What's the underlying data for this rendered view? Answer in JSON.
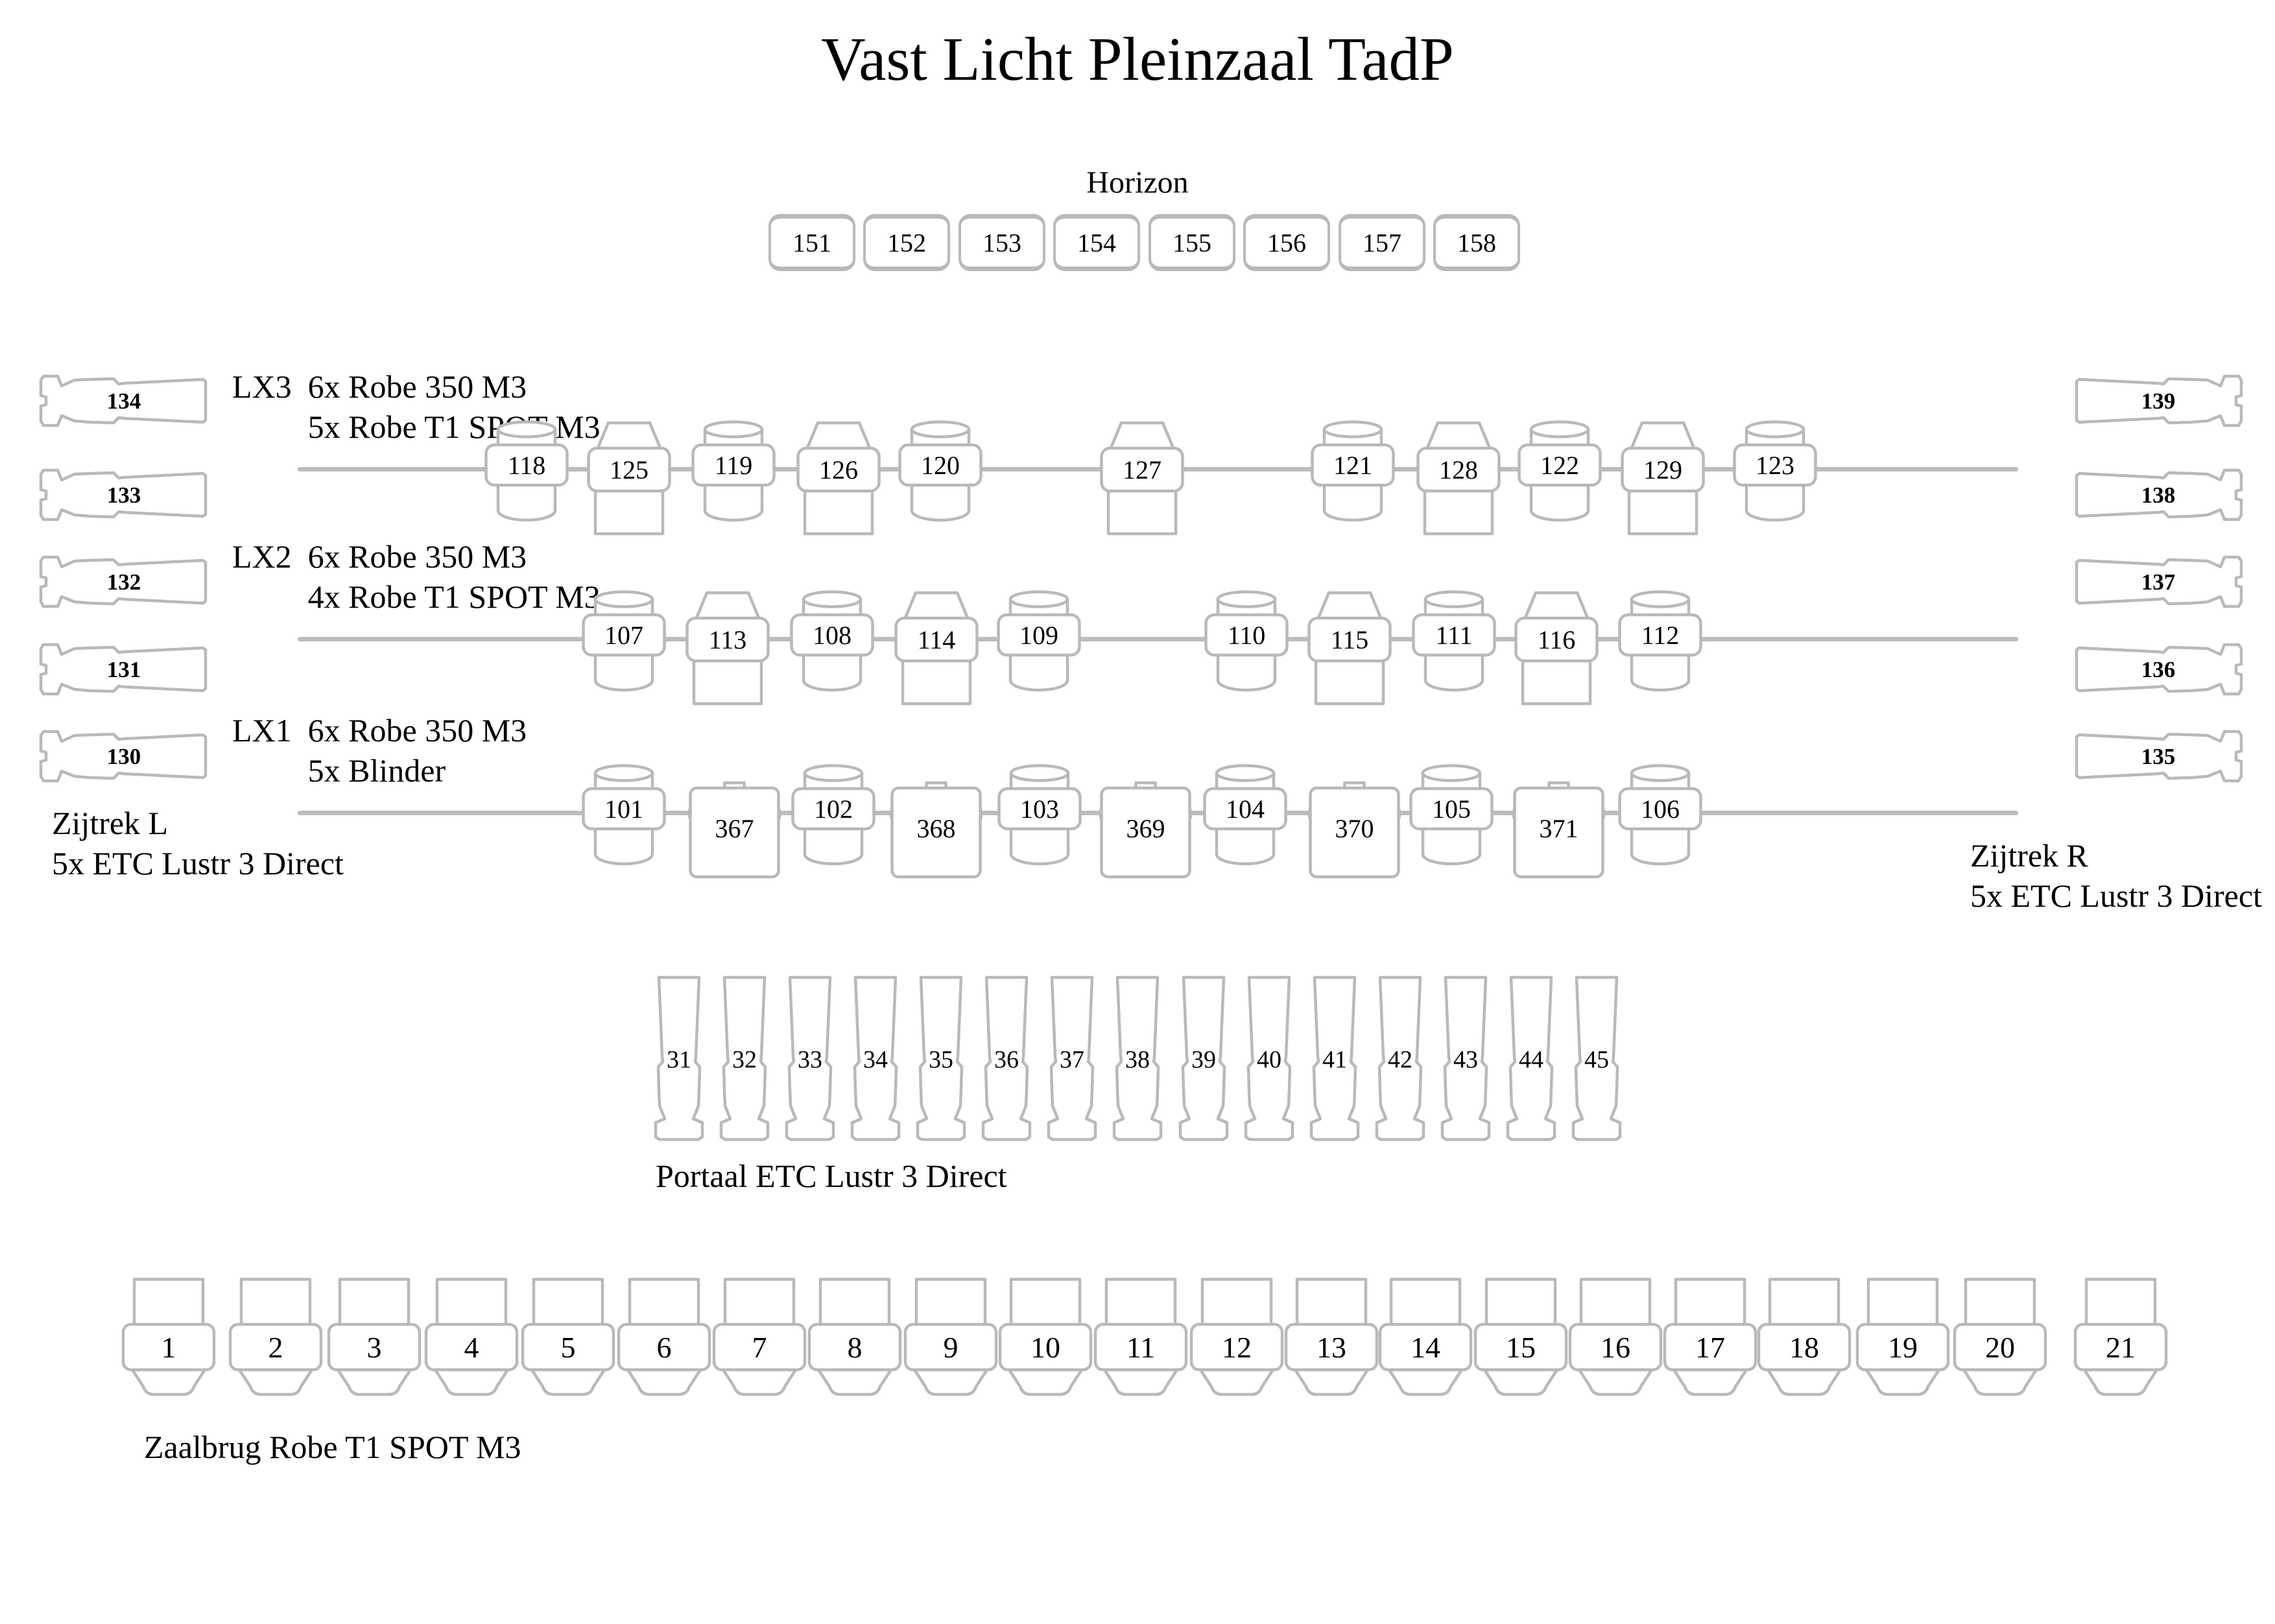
{
  "title": "Vast Licht Pleinzaal TadP",
  "colors": {
    "outline": "#b9b9b9",
    "pipe": "#bdbdbd",
    "text": "#000000",
    "background": "#ffffff"
  },
  "horizon": {
    "label": "Horizon",
    "fixtures": [
      {
        "num": "151"
      },
      {
        "num": "152"
      },
      {
        "num": "153"
      },
      {
        "num": "154"
      },
      {
        "num": "155"
      },
      {
        "num": "156"
      },
      {
        "num": "157"
      },
      {
        "num": "158"
      }
    ]
  },
  "rows": {
    "lx3": {
      "name": "LX3",
      "line1": "6x Robe 350 M3",
      "line2": "5x Robe T1 SPOT M3",
      "fixtures": [
        {
          "num": "118",
          "type": "mover"
        },
        {
          "num": "125",
          "type": "spot"
        },
        {
          "num": "119",
          "type": "mover"
        },
        {
          "num": "126",
          "type": "spot"
        },
        {
          "num": "120",
          "type": "mover"
        },
        {
          "num": "127",
          "type": "spot"
        },
        {
          "num": "121",
          "type": "mover"
        },
        {
          "num": "128",
          "type": "spot"
        },
        {
          "num": "122",
          "type": "mover"
        },
        {
          "num": "129",
          "type": "spot"
        },
        {
          "num": "123",
          "type": "mover"
        }
      ]
    },
    "lx2": {
      "name": "LX2",
      "line1": "6x Robe 350 M3",
      "line2": "4x Robe T1 SPOT M3",
      "fixtures": [
        {
          "num": "107",
          "type": "mover"
        },
        {
          "num": "113",
          "type": "spot"
        },
        {
          "num": "108",
          "type": "mover"
        },
        {
          "num": "114",
          "type": "spot"
        },
        {
          "num": "109",
          "type": "mover"
        },
        {
          "num": "110",
          "type": "mover"
        },
        {
          "num": "115",
          "type": "spot"
        },
        {
          "num": "111",
          "type": "mover"
        },
        {
          "num": "116",
          "type": "spot"
        },
        {
          "num": "112",
          "type": "mover"
        }
      ]
    },
    "lx1": {
      "name": "LX1",
      "line1": "6x Robe 350 M3",
      "line2": "5x Blinder",
      "fixtures": [
        {
          "num": "101",
          "type": "mover"
        },
        {
          "num": "367",
          "type": "blinder"
        },
        {
          "num": "102",
          "type": "mover"
        },
        {
          "num": "368",
          "type": "blinder"
        },
        {
          "num": "103",
          "type": "mover"
        },
        {
          "num": "369",
          "type": "blinder"
        },
        {
          "num": "104",
          "type": "mover"
        },
        {
          "num": "370",
          "type": "blinder"
        },
        {
          "num": "105",
          "type": "mover"
        },
        {
          "num": "371",
          "type": "blinder"
        },
        {
          "num": "106",
          "type": "mover"
        }
      ]
    }
  },
  "zijtrek_left": {
    "title": "Zijtrek L",
    "subtitle": "5x ETC Lustr 3 Direct",
    "fixtures": [
      {
        "num": "134"
      },
      {
        "num": "133"
      },
      {
        "num": "132"
      },
      {
        "num": "131"
      },
      {
        "num": "130"
      }
    ]
  },
  "zijtrek_right": {
    "title": "Zijtrek R",
    "subtitle": "5x ETC Lustr 3 Direct",
    "fixtures": [
      {
        "num": "139"
      },
      {
        "num": "138"
      },
      {
        "num": "137"
      },
      {
        "num": "136"
      },
      {
        "num": "135"
      }
    ]
  },
  "portaal": {
    "label": "Portaal ETC Lustr 3 Direct",
    "fixtures": [
      {
        "num": "31"
      },
      {
        "num": "32"
      },
      {
        "num": "33"
      },
      {
        "num": "34"
      },
      {
        "num": "35"
      },
      {
        "num": "36"
      },
      {
        "num": "37"
      },
      {
        "num": "38"
      },
      {
        "num": "39"
      },
      {
        "num": "40"
      },
      {
        "num": "41"
      },
      {
        "num": "42"
      },
      {
        "num": "43"
      },
      {
        "num": "44"
      },
      {
        "num": "45"
      }
    ]
  },
  "zaalbrug": {
    "label": "Zaalbrug Robe T1 SPOT M3",
    "fixtures": [
      {
        "num": "1"
      },
      {
        "num": "2"
      },
      {
        "num": "3"
      },
      {
        "num": "4"
      },
      {
        "num": "5"
      },
      {
        "num": "6"
      },
      {
        "num": "7"
      },
      {
        "num": "8"
      },
      {
        "num": "9"
      },
      {
        "num": "10"
      },
      {
        "num": "11"
      },
      {
        "num": "12"
      },
      {
        "num": "13"
      },
      {
        "num": "14"
      },
      {
        "num": "15"
      },
      {
        "num": "16"
      },
      {
        "num": "17"
      },
      {
        "num": "18"
      },
      {
        "num": "19"
      },
      {
        "num": "20"
      },
      {
        "num": "21"
      }
    ]
  }
}
